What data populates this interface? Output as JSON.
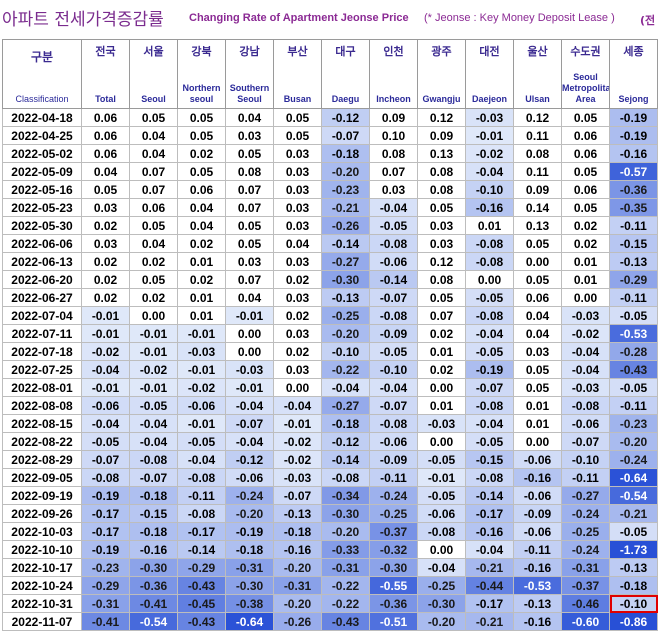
{
  "title": {
    "korean": "아파트 전세가격증감률",
    "english": "Changing Rate of Apartment Jeonse Price",
    "note": "(* Jeonse : Key Money Deposit Lease )",
    "cut": "(전"
  },
  "header": {
    "first": {
      "kr": "구분",
      "en": "Classification"
    },
    "regions": [
      {
        "kr": "전국",
        "en": "Total"
      },
      {
        "kr": "서울",
        "en": "Seoul"
      },
      {
        "kr": "강북",
        "en": "Northern seoul"
      },
      {
        "kr": "강남",
        "en": "Southern Seoul"
      },
      {
        "kr": "부산",
        "en": "Busan"
      },
      {
        "kr": "대구",
        "en": "Daegu"
      },
      {
        "kr": "인천",
        "en": "Incheon"
      },
      {
        "kr": "광주",
        "en": "Gwangju"
      },
      {
        "kr": "대전",
        "en": "Daejeon"
      },
      {
        "kr": "울산",
        "en": "Ulsan"
      },
      {
        "kr": "수도권",
        "en": "Seoul Metropolitan Area"
      },
      {
        "kr": "세종",
        "en": "Sejong"
      }
    ]
  },
  "colors": {
    "highlight_border": "#e00000",
    "header_text": "#3b2a90",
    "title_text": "#7a2b8e"
  },
  "highlight_cell": {
    "row": 27,
    "col": 11
  },
  "rows": [
    {
      "date": "2022-04-18",
      "values": [
        "0.06",
        "0.05",
        "0.05",
        "0.04",
        "0.05",
        "-0.12",
        "0.09",
        "0.12",
        "-0.03",
        "0.12",
        "0.05",
        "-0.19"
      ]
    },
    {
      "date": "2022-04-25",
      "values": [
        "0.06",
        "0.04",
        "0.05",
        "0.03",
        "0.05",
        "-0.07",
        "0.10",
        "0.09",
        "-0.01",
        "0.11",
        "0.06",
        "-0.19"
      ]
    },
    {
      "date": "2022-05-02",
      "values": [
        "0.06",
        "0.04",
        "0.02",
        "0.05",
        "0.03",
        "-0.18",
        "0.08",
        "0.13",
        "-0.02",
        "0.08",
        "0.06",
        "-0.16"
      ]
    },
    {
      "date": "2022-05-09",
      "values": [
        "0.04",
        "0.07",
        "0.05",
        "0.08",
        "0.03",
        "-0.20",
        "0.07",
        "0.08",
        "-0.04",
        "0.11",
        "0.05",
        "-0.57"
      ]
    },
    {
      "date": "2022-05-16",
      "values": [
        "0.05",
        "0.07",
        "0.06",
        "0.07",
        "0.03",
        "-0.23",
        "0.03",
        "0.08",
        "-0.10",
        "0.09",
        "0.06",
        "-0.36"
      ]
    },
    {
      "date": "2022-05-23",
      "values": [
        "0.03",
        "0.06",
        "0.04",
        "0.07",
        "0.03",
        "-0.21",
        "-0.04",
        "0.05",
        "-0.16",
        "0.14",
        "0.05",
        "-0.35"
      ]
    },
    {
      "date": "2022-05-30",
      "values": [
        "0.02",
        "0.05",
        "0.04",
        "0.05",
        "0.03",
        "-0.26",
        "-0.05",
        "0.03",
        "0.01",
        "0.13",
        "0.02",
        "-0.11"
      ]
    },
    {
      "date": "2022-06-06",
      "values": [
        "0.03",
        "0.04",
        "0.02",
        "0.05",
        "0.04",
        "-0.14",
        "-0.08",
        "0.03",
        "-0.08",
        "0.05",
        "0.02",
        "-0.15"
      ]
    },
    {
      "date": "2022-06-13",
      "values": [
        "0.02",
        "0.02",
        "0.01",
        "0.03",
        "0.03",
        "-0.27",
        "-0.06",
        "0.12",
        "-0.08",
        "0.00",
        "0.01",
        "-0.13"
      ]
    },
    {
      "date": "2022-06-20",
      "values": [
        "0.02",
        "0.05",
        "0.02",
        "0.07",
        "0.02",
        "-0.30",
        "-0.14",
        "0.08",
        "0.00",
        "0.05",
        "0.01",
        "-0.29"
      ]
    },
    {
      "date": "2022-06-27",
      "values": [
        "0.02",
        "0.02",
        "0.01",
        "0.04",
        "0.03",
        "-0.13",
        "-0.07",
        "0.05",
        "-0.05",
        "0.06",
        "0.00",
        "-0.11"
      ]
    },
    {
      "date": "2022-07-04",
      "values": [
        "-0.01",
        "0.00",
        "0.01",
        "-0.01",
        "0.02",
        "-0.25",
        "-0.08",
        "0.07",
        "-0.08",
        "0.04",
        "-0.03",
        "-0.05"
      ]
    },
    {
      "date": "2022-07-11",
      "values": [
        "-0.01",
        "-0.01",
        "-0.01",
        "0.00",
        "0.03",
        "-0.20",
        "-0.09",
        "0.02",
        "-0.04",
        "0.04",
        "-0.02",
        "-0.53"
      ]
    },
    {
      "date": "2022-07-18",
      "values": [
        "-0.02",
        "-0.01",
        "-0.03",
        "0.00",
        "0.02",
        "-0.10",
        "-0.05",
        "0.01",
        "-0.05",
        "0.03",
        "-0.04",
        "-0.28"
      ]
    },
    {
      "date": "2022-07-25",
      "values": [
        "-0.04",
        "-0.02",
        "-0.01",
        "-0.03",
        "0.03",
        "-0.22",
        "-0.10",
        "0.02",
        "-0.19",
        "0.05",
        "-0.04",
        "-0.43"
      ]
    },
    {
      "date": "2022-08-01",
      "values": [
        "-0.01",
        "-0.01",
        "-0.02",
        "-0.01",
        "0.00",
        "-0.04",
        "-0.04",
        "0.00",
        "-0.07",
        "0.05",
        "-0.03",
        "-0.05"
      ]
    },
    {
      "date": "2022-08-08",
      "values": [
        "-0.06",
        "-0.05",
        "-0.06",
        "-0.04",
        "-0.04",
        "-0.27",
        "-0.07",
        "0.01",
        "-0.08",
        "0.01",
        "-0.08",
        "-0.11"
      ]
    },
    {
      "date": "2022-08-15",
      "values": [
        "-0.04",
        "-0.04",
        "-0.01",
        "-0.07",
        "-0.01",
        "-0.18",
        "-0.08",
        "-0.03",
        "-0.04",
        "0.01",
        "-0.06",
        "-0.23"
      ]
    },
    {
      "date": "2022-08-22",
      "values": [
        "-0.05",
        "-0.04",
        "-0.05",
        "-0.04",
        "-0.02",
        "-0.12",
        "-0.06",
        "0.00",
        "-0.05",
        "0.00",
        "-0.07",
        "-0.20"
      ]
    },
    {
      "date": "2022-08-29",
      "values": [
        "-0.07",
        "-0.08",
        "-0.04",
        "-0.12",
        "-0.02",
        "-0.14",
        "-0.09",
        "-0.05",
        "-0.15",
        "-0.06",
        "-0.10",
        "-0.24"
      ]
    },
    {
      "date": "2022-09-05",
      "values": [
        "-0.08",
        "-0.07",
        "-0.08",
        "-0.06",
        "-0.03",
        "-0.08",
        "-0.11",
        "-0.01",
        "-0.08",
        "-0.16",
        "-0.11",
        "-0.64"
      ]
    },
    {
      "date": "2022-09-19",
      "values": [
        "-0.19",
        "-0.18",
        "-0.11",
        "-0.24",
        "-0.07",
        "-0.34",
        "-0.24",
        "-0.05",
        "-0.14",
        "-0.06",
        "-0.27",
        "-0.54"
      ]
    },
    {
      "date": "2022-09-26",
      "values": [
        "-0.17",
        "-0.15",
        "-0.08",
        "-0.20",
        "-0.13",
        "-0.30",
        "-0.25",
        "-0.06",
        "-0.17",
        "-0.09",
        "-0.24",
        "-0.21"
      ]
    },
    {
      "date": "2022-10-03",
      "values": [
        "-0.17",
        "-0.18",
        "-0.17",
        "-0.19",
        "-0.18",
        "-0.20",
        "-0.37",
        "-0.08",
        "-0.16",
        "-0.06",
        "-0.25",
        "-0.05"
      ]
    },
    {
      "date": "2022-10-10",
      "values": [
        "-0.19",
        "-0.16",
        "-0.14",
        "-0.18",
        "-0.16",
        "-0.33",
        "-0.32",
        "0.00",
        "-0.04",
        "-0.11",
        "-0.24",
        "-1.73"
      ]
    },
    {
      "date": "2022-10-17",
      "values": [
        "-0.23",
        "-0.30",
        "-0.29",
        "-0.31",
        "-0.20",
        "-0.31",
        "-0.30",
        "-0.04",
        "-0.21",
        "-0.16",
        "-0.31",
        "-0.13"
      ]
    },
    {
      "date": "2022-10-24",
      "values": [
        "-0.29",
        "-0.36",
        "-0.43",
        "-0.30",
        "-0.31",
        "-0.22",
        "-0.55",
        "-0.25",
        "-0.44",
        "-0.53",
        "-0.37",
        "-0.18"
      ]
    },
    {
      "date": "2022-10-31",
      "values": [
        "-0.31",
        "-0.41",
        "-0.45",
        "-0.38",
        "-0.20",
        "-0.22",
        "-0.36",
        "-0.30",
        "-0.17",
        "-0.13",
        "-0.46",
        "-0.10"
      ]
    },
    {
      "date": "2022-11-07",
      "values": [
        "-0.41",
        "-0.54",
        "-0.43",
        "-0.64",
        "-0.26",
        "-0.43",
        "-0.51",
        "-0.20",
        "-0.21",
        "-0.16",
        "-0.60",
        "-0.86"
      ]
    }
  ]
}
